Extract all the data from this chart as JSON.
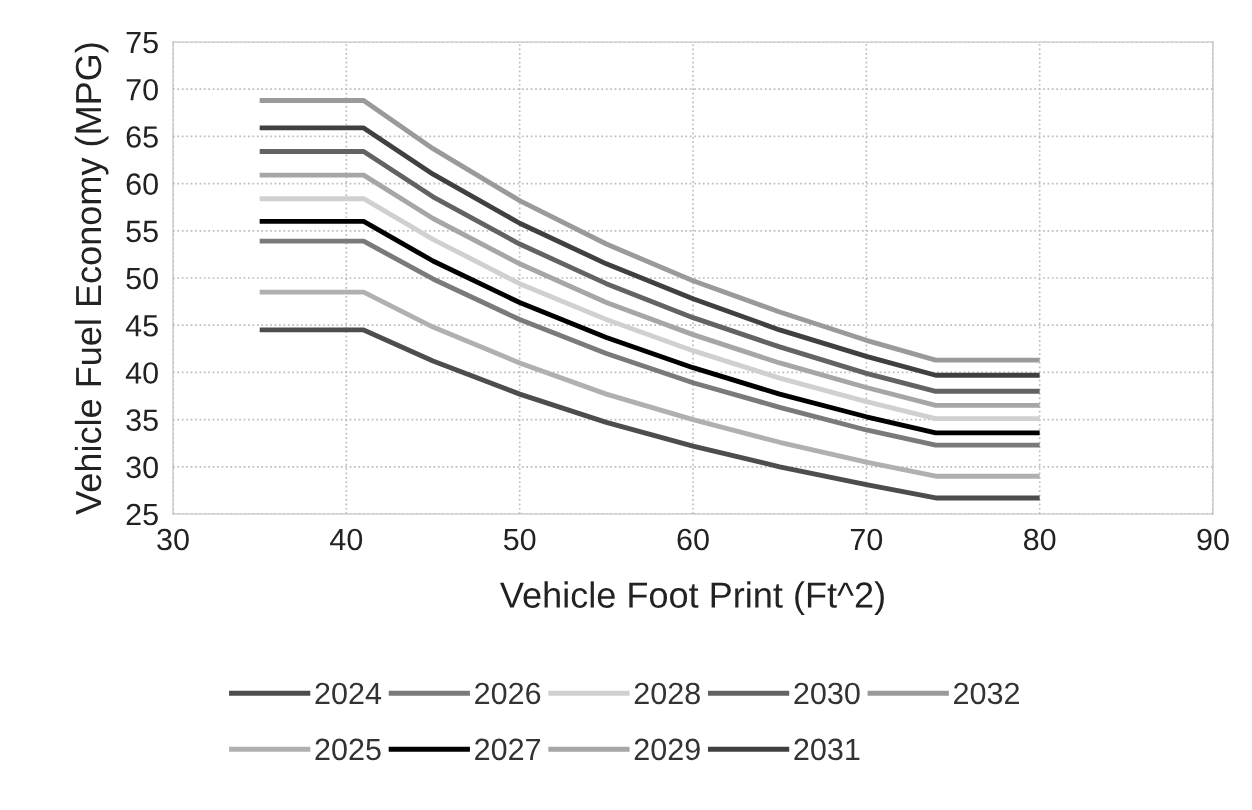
{
  "chart_data": {
    "type": "line",
    "xlabel": "Vehicle Foot Print (Ft^2)",
    "ylabel": "Vehicle Fuel Economy (MPG)",
    "x": [
      35,
      41,
      45,
      50,
      55,
      60,
      65,
      70,
      74,
      80
    ],
    "xlim": [
      30,
      90
    ],
    "xticks": [
      30,
      40,
      50,
      60,
      70,
      80,
      90
    ],
    "ylim": [
      25,
      75
    ],
    "yticks": [
      25,
      30,
      35,
      40,
      45,
      50,
      55,
      60,
      65,
      70,
      75
    ],
    "grid": true,
    "legend": "bottom",
    "marker": "none",
    "line_style": "solid",
    "series": [
      {
        "name": "2024",
        "color": "#4d4d4d",
        "values": [
          44.5,
          44.5,
          41.2,
          37.7,
          34.7,
          32.2,
          30.0,
          28.1,
          26.7,
          26.7
        ]
      },
      {
        "name": "2025",
        "color": "#b0b0b0",
        "values": [
          48.5,
          48.5,
          44.8,
          41.0,
          37.7,
          35.0,
          32.6,
          30.5,
          29.0,
          29.0
        ]
      },
      {
        "name": "2026",
        "color": "#7a7a7a",
        "values": [
          53.9,
          53.9,
          49.9,
          45.6,
          42.0,
          38.9,
          36.3,
          33.9,
          32.3,
          32.3
        ]
      },
      {
        "name": "2027",
        "color": "#000000",
        "values": [
          56.0,
          56.0,
          51.8,
          47.4,
          43.7,
          40.5,
          37.7,
          35.3,
          33.6,
          33.6
        ]
      },
      {
        "name": "2028",
        "color": "#d0d0d0",
        "values": [
          58.4,
          58.4,
          54.1,
          49.4,
          45.6,
          42.3,
          39.4,
          36.9,
          35.1,
          35.1
        ]
      },
      {
        "name": "2029",
        "color": "#a6a6a6",
        "values": [
          60.9,
          60.9,
          56.3,
          51.5,
          47.4,
          44.0,
          41.0,
          38.4,
          36.5,
          36.5
        ]
      },
      {
        "name": "2030",
        "color": "#636363",
        "values": [
          63.4,
          63.4,
          58.6,
          53.6,
          49.4,
          45.8,
          42.7,
          39.9,
          38.0,
          38.0
        ]
      },
      {
        "name": "2031",
        "color": "#404040",
        "values": [
          65.9,
          65.9,
          61.0,
          55.8,
          51.5,
          47.8,
          44.5,
          41.7,
          39.7,
          39.7
        ]
      },
      {
        "name": "2032",
        "color": "#9a9a9a",
        "values": [
          68.8,
          68.8,
          63.7,
          58.2,
          53.6,
          49.7,
          46.4,
          43.4,
          41.3,
          41.3
        ]
      }
    ]
  }
}
